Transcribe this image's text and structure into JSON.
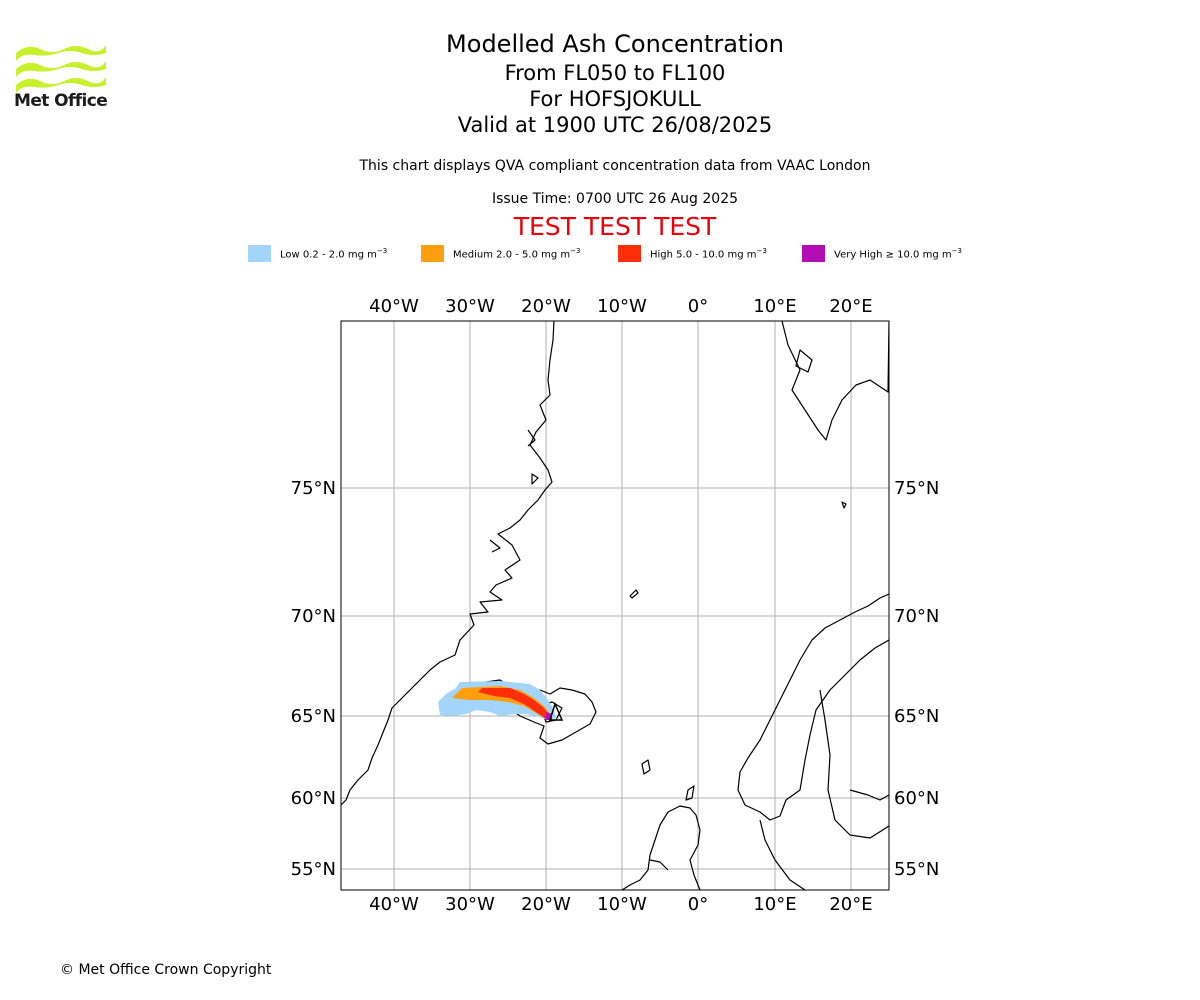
{
  "logo": {
    "text": "Met Office"
  },
  "title": {
    "line1": "Modelled Ash Concentration",
    "line2": "From FL050 to FL100",
    "line3": "For HOFSJOKULL",
    "line4": "Valid at 1900 UTC 26/08/2025"
  },
  "subtitle": "This chart displays QVA compliant concentration data from VAAC London",
  "issue_time": "Issue Time: 0700 UTC 26 Aug 2025",
  "test_banner": "TEST TEST TEST",
  "legend": [
    {
      "label": "Low 0.2 - 2.0 mg m",
      "color": "#a3d5fb"
    },
    {
      "label": "Medium 2.0 - 5.0 mg m",
      "color": "#ff9e0e"
    },
    {
      "label": "High 5.0 - 10.0 mg m",
      "color": "#ff2d09"
    },
    {
      "label": "Very High ≥ 10.0 mg m",
      "color": "#b20cb5"
    }
  ],
  "legend_unit_exponent": "−3",
  "map": {
    "lon_ticks": [
      "40°W",
      "30°W",
      "20°W",
      "10°W",
      "0°",
      "10°E",
      "20°E"
    ],
    "lat_ticks": [
      "75°N",
      "70°N",
      "65°N",
      "60°N",
      "55°N"
    ],
    "gridline_color": "#b0b0b0",
    "coast_color": "#000000"
  },
  "copyright": "© Met Office Crown Copyright"
}
